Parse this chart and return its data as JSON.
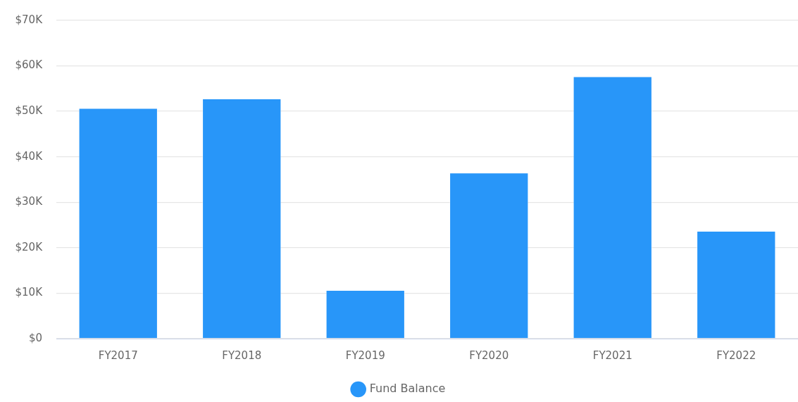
{
  "chart_data": {
    "type": "bar",
    "categories": [
      "FY2017",
      "FY2018",
      "FY2019",
      "FY2020",
      "FY2021",
      "FY2022"
    ],
    "series": [
      {
        "name": "Fund Balance",
        "color": "#2896f9",
        "values": [
          50700,
          52800,
          10700,
          36500,
          57700,
          23700
        ]
      }
    ],
    "ylim": [
      0,
      70000
    ],
    "yticks": [
      {
        "value": 0,
        "label": "$0"
      },
      {
        "value": 10000,
        "label": "$10K"
      },
      {
        "value": 20000,
        "label": "$20K"
      },
      {
        "value": 30000,
        "label": "$30K"
      },
      {
        "value": 40000,
        "label": "$40K"
      },
      {
        "value": 50000,
        "label": "$50K"
      },
      {
        "value": 60000,
        "label": "$60K"
      },
      {
        "value": 70000,
        "label": "$70K"
      }
    ],
    "grid": "y",
    "legend": "bottom",
    "marker": "circle"
  }
}
